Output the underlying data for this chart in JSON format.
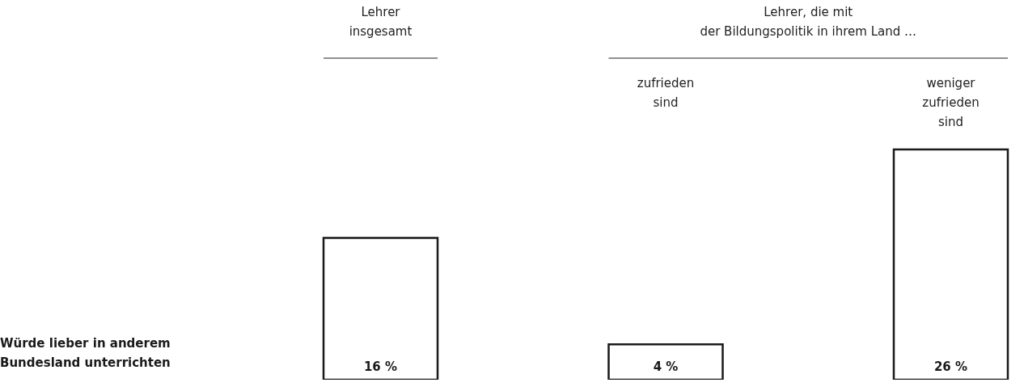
{
  "chart_data": {
    "type": "bar",
    "categories": [
      null,
      "zufrieden\nsind",
      "weniger\nzufrieden\nsind"
    ],
    "values": [
      16,
      4,
      26
    ],
    "value_labels": [
      "16 %",
      "4 %",
      "26 %"
    ],
    "color": "#1a1a1a",
    "annotations": [
      "Lehrer\ninsgesamt",
      "Lehrer, die mit\nder Bildungspolitik in ihrem Land …",
      "Würde lieber in anderem\nBundesland unterrichten"
    ]
  }
}
